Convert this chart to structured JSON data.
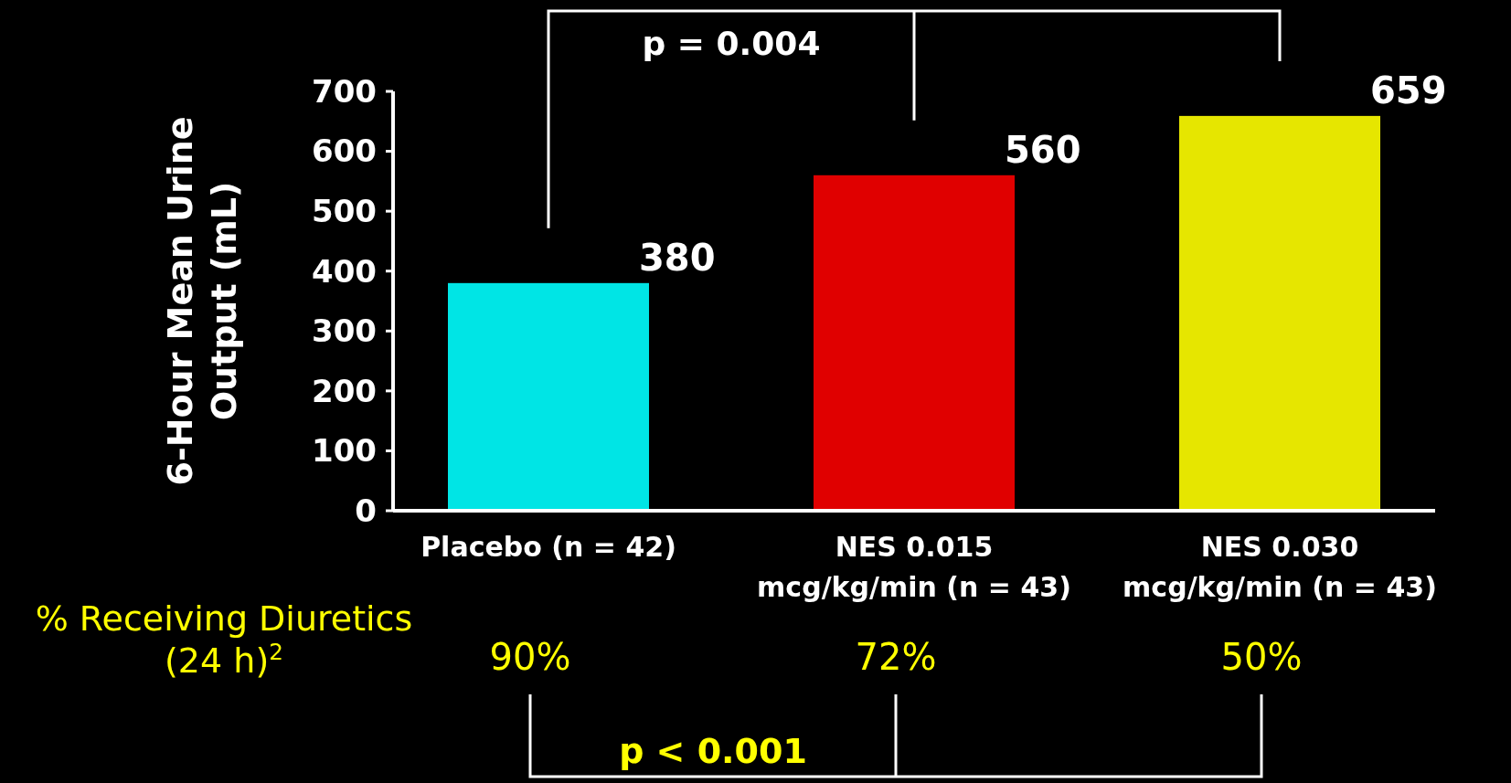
{
  "chart_data": {
    "type": "bar",
    "ylabel": "6-Hour Mean Urine Output (mL)",
    "categories": [
      "Placebo (n = 42)",
      "NES 0.015 mcg/kg/min (n = 43)",
      "NES 0.030 mcg/kg/min (n = 43)"
    ],
    "values": [
      380,
      560,
      659
    ],
    "colors": [
      "#00e5e5",
      "#e00000",
      "#e6e600"
    ],
    "ylim": [
      0,
      700
    ],
    "yticks": [
      0,
      100,
      200,
      300,
      400,
      500,
      600,
      700
    ],
    "data_labels": true,
    "annotations": [
      "p = 0.004",
      "% Receiving Diuretics (24 h)$^{2}$",
      "90%",
      "72%",
      "50%",
      "p < 0.001"
    ]
  }
}
